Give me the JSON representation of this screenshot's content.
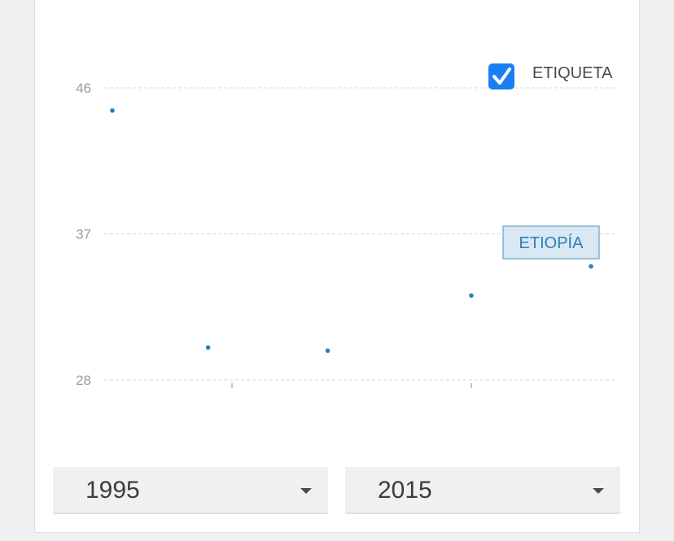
{
  "chart_data": {
    "type": "scatter",
    "title": "",
    "xlabel": "",
    "ylabel": "",
    "y_ticks": [
      28,
      37,
      46
    ],
    "ylim": [
      27.5,
      47
    ],
    "xlim": [
      1995,
      2015
    ],
    "grid": true,
    "series": [
      {
        "name": "ETIOPÍA",
        "color": "#2e7fb8",
        "x": [
          1995,
          1999,
          2004,
          2010,
          2015
        ],
        "y": [
          44.6,
          30.0,
          29.8,
          33.2,
          35.0
        ]
      }
    ],
    "legend": {
      "label": "ETIQUETA",
      "checked": true,
      "placement": "top-right"
    },
    "tooltip": {
      "label": "ETIOPÍA"
    }
  },
  "controls": {
    "start_year": "1995",
    "end_year": "2015"
  },
  "colors": {
    "accent": "#1a7ff2",
    "series": "#2e7fb8",
    "grid": "#d9d9d9"
  }
}
